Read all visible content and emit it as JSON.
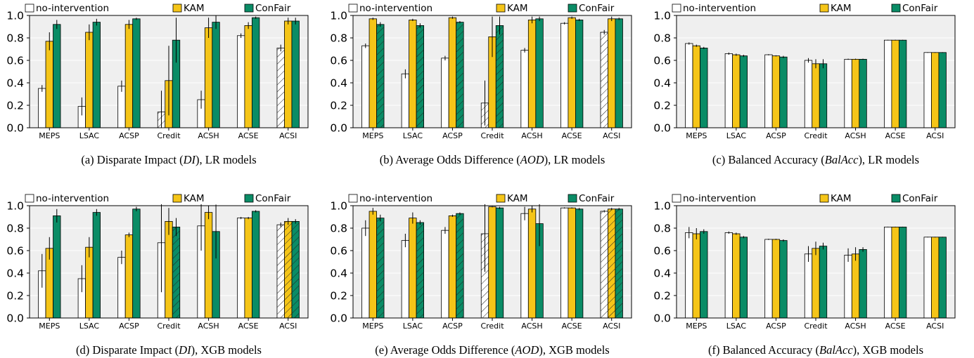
{
  "legend": {
    "labels": [
      "no-intervention",
      "KAM",
      "ConFair"
    ],
    "colors": [
      "#ffffff",
      "#f5c518",
      "#0a8c66"
    ]
  },
  "style": {
    "panel_background": "#efefef",
    "grid_color": "#ffffff",
    "axis_color": "#000000"
  },
  "chart_data": [
    {
      "type": "bar",
      "caption": [
        "(a) Disparate Impact (",
        "DI",
        "), LR models"
      ],
      "categories": [
        "MEPS",
        "LSAC",
        "ACSP",
        "Credit",
        "ACSH",
        "ACSE",
        "ACSI"
      ],
      "ylim": [
        0,
        1.0
      ],
      "yticks": [
        "0.0",
        "0.2",
        "0.4",
        "0.6",
        "0.8",
        "1.0"
      ],
      "series": [
        {
          "name": "no-intervention",
          "values": [
            0.35,
            0.19,
            0.37,
            0.14,
            0.25,
            0.82,
            0.71
          ],
          "errors": [
            0.03,
            0.08,
            0.05,
            0.19,
            0.08,
            0.02,
            0.03
          ],
          "hatched": [
            false,
            false,
            false,
            true,
            false,
            false,
            true
          ]
        },
        {
          "name": "KAM",
          "values": [
            0.77,
            0.85,
            0.92,
            0.42,
            0.89,
            0.91,
            0.95
          ],
          "errors": [
            0.08,
            0.07,
            0.04,
            0.31,
            0.09,
            0.03,
            0.03
          ],
          "hatched": [
            false,
            false,
            false,
            false,
            false,
            false,
            false
          ]
        },
        {
          "name": "ConFair",
          "values": [
            0.92,
            0.94,
            0.97,
            0.78,
            0.94,
            0.98,
            0.95
          ],
          "errors": [
            0.04,
            0.03,
            0.01,
            0.2,
            0.06,
            0.01,
            0.03
          ],
          "hatched": [
            false,
            false,
            false,
            false,
            false,
            false,
            false
          ]
        }
      ]
    },
    {
      "type": "bar",
      "caption": [
        "(b) Average Odds Difference (",
        "AOD",
        "), LR models"
      ],
      "categories": [
        "MEPS",
        "LSAC",
        "ACSP",
        "Credit",
        "ACSH",
        "ACSE",
        "ACSI"
      ],
      "ylim": [
        0,
        1.0
      ],
      "yticks": [
        "0.0",
        "0.2",
        "0.4",
        "0.6",
        "0.8",
        "1.0"
      ],
      "series": [
        {
          "name": "no-intervention",
          "values": [
            0.73,
            0.48,
            0.62,
            0.22,
            0.69,
            0.93,
            0.85
          ],
          "errors": [
            0.02,
            0.04,
            0.02,
            0.2,
            0.02,
            0.01,
            0.02
          ],
          "hatched": [
            false,
            false,
            false,
            true,
            false,
            false,
            true
          ]
        },
        {
          "name": "KAM",
          "values": [
            0.97,
            0.96,
            0.98,
            0.81,
            0.96,
            0.98,
            0.97
          ],
          "errors": [
            0.01,
            0.01,
            0.01,
            0.18,
            0.03,
            0.01,
            0.02
          ],
          "hatched": [
            false,
            false,
            false,
            false,
            false,
            false,
            false
          ]
        },
        {
          "name": "ConFair",
          "values": [
            0.92,
            0.91,
            0.94,
            0.91,
            0.97,
            0.96,
            0.97
          ],
          "errors": [
            0.02,
            0.02,
            0.01,
            0.08,
            0.02,
            0.01,
            0.01
          ],
          "hatched": [
            true,
            true,
            true,
            true,
            false,
            false,
            false
          ]
        }
      ]
    },
    {
      "type": "bar",
      "caption": [
        "(c) Balanced Accuracy (",
        "BalAcc",
        "), LR models"
      ],
      "categories": [
        "MEPS",
        "LSAC",
        "ACSP",
        "Credit",
        "ACSH",
        "ACSE",
        "ACSI"
      ],
      "ylim": [
        0,
        1.0
      ],
      "yticks": [
        "0.0",
        "0.2",
        "0.4",
        "0.6",
        "0.8",
        "1.0"
      ],
      "series": [
        {
          "name": "no-intervention",
          "values": [
            0.75,
            0.66,
            0.65,
            0.6,
            0.61,
            0.78,
            0.67
          ],
          "errors": [
            0.01,
            0.01,
            0.005,
            0.02,
            0.005,
            0.003,
            0.003
          ],
          "hatched": [
            false,
            false,
            false,
            false,
            false,
            false,
            false
          ]
        },
        {
          "name": "KAM",
          "values": [
            0.73,
            0.65,
            0.64,
            0.57,
            0.61,
            0.78,
            0.67
          ],
          "errors": [
            0.01,
            0.01,
            0.005,
            0.04,
            0.005,
            0.003,
            0.003
          ],
          "hatched": [
            false,
            false,
            false,
            false,
            false,
            false,
            false
          ]
        },
        {
          "name": "ConFair",
          "values": [
            0.71,
            0.64,
            0.63,
            0.57,
            0.61,
            0.78,
            0.67
          ],
          "errors": [
            0.01,
            0.01,
            0.01,
            0.04,
            0.005,
            0.003,
            0.003
          ],
          "hatched": [
            false,
            false,
            false,
            false,
            false,
            false,
            false
          ]
        }
      ]
    },
    {
      "type": "bar",
      "caption": [
        "(d) Disparate Impact (",
        "DI",
        "), XGB models"
      ],
      "categories": [
        "MEPS",
        "LSAC",
        "ACSP",
        "Credit",
        "ACSH",
        "ACSE",
        "ACSI"
      ],
      "ylim": [
        0,
        1.0
      ],
      "yticks": [
        "0.0",
        "0.2",
        "0.4",
        "0.6",
        "0.8",
        "1.0"
      ],
      "series": [
        {
          "name": "no-intervention",
          "values": [
            0.42,
            0.35,
            0.54,
            0.67,
            0.82,
            0.89,
            0.83
          ],
          "errors": [
            0.15,
            0.12,
            0.06,
            0.44,
            0.22,
            0.01,
            0.02
          ],
          "hatched": [
            false,
            false,
            false,
            false,
            false,
            false,
            true
          ]
        },
        {
          "name": "KAM",
          "values": [
            0.62,
            0.63,
            0.74,
            0.86,
            0.94,
            0.89,
            0.86
          ],
          "errors": [
            0.1,
            0.09,
            0.02,
            0.12,
            0.06,
            0.01,
            0.03
          ],
          "hatched": [
            false,
            false,
            false,
            false,
            false,
            false,
            true
          ]
        },
        {
          "name": "ConFair",
          "values": [
            0.91,
            0.94,
            0.97,
            0.81,
            0.77,
            0.95,
            0.86
          ],
          "errors": [
            0.06,
            0.03,
            0.02,
            0.08,
            0.24,
            0.01,
            0.02
          ],
          "hatched": [
            false,
            false,
            false,
            true,
            false,
            false,
            true
          ]
        }
      ]
    },
    {
      "type": "bar",
      "caption": [
        "(e) Average Odds Difference (",
        "AOD",
        "), XGB models"
      ],
      "categories": [
        "MEPS",
        "LSAC",
        "ACSP",
        "Credit",
        "ACSH",
        "ACSE",
        "ACSI"
      ],
      "ylim": [
        0,
        1.0
      ],
      "yticks": [
        "0.0",
        "0.2",
        "0.4",
        "0.6",
        "0.8",
        "1.0"
      ],
      "series": [
        {
          "name": "no-intervention",
          "values": [
            0.8,
            0.69,
            0.78,
            0.75,
            0.93,
            0.98,
            0.95
          ],
          "errors": [
            0.07,
            0.06,
            0.03,
            0.34,
            0.06,
            0.005,
            0.01
          ],
          "hatched": [
            false,
            false,
            false,
            true,
            false,
            false,
            true
          ]
        },
        {
          "name": "KAM",
          "values": [
            0.95,
            0.89,
            0.91,
            0.99,
            0.97,
            0.98,
            0.97
          ],
          "errors": [
            0.03,
            0.05,
            0.01,
            0.005,
            0.03,
            0.005,
            0.01
          ],
          "hatched": [
            false,
            false,
            false,
            false,
            false,
            false,
            true
          ]
        },
        {
          "name": "ConFair",
          "values": [
            0.89,
            0.85,
            0.93,
            0.98,
            0.84,
            0.97,
            0.97
          ],
          "errors": [
            0.03,
            0.02,
            0.01,
            0.01,
            0.2,
            0.01,
            0.01
          ],
          "hatched": [
            true,
            true,
            true,
            false,
            false,
            false,
            true
          ]
        }
      ]
    },
    {
      "type": "bar",
      "caption": [
        "(f) Balanced Accuracy (",
        "BalAcc",
        "), XGB models"
      ],
      "categories": [
        "MEPS",
        "LSAC",
        "ACSP",
        "Credit",
        "ACSH",
        "ACSE",
        "ACSI"
      ],
      "ylim": [
        0,
        1.0
      ],
      "yticks": [
        "0.0",
        "0.2",
        "0.4",
        "0.6",
        "0.8",
        "1.0"
      ],
      "series": [
        {
          "name": "no-intervention",
          "values": [
            0.76,
            0.76,
            0.7,
            0.57,
            0.56,
            0.81,
            0.72
          ],
          "errors": [
            0.05,
            0.01,
            0.005,
            0.07,
            0.06,
            0.003,
            0.003
          ],
          "hatched": [
            false,
            false,
            false,
            false,
            false,
            false,
            false
          ]
        },
        {
          "name": "KAM",
          "values": [
            0.75,
            0.75,
            0.7,
            0.62,
            0.57,
            0.81,
            0.72
          ],
          "errors": [
            0.05,
            0.01,
            0.005,
            0.06,
            0.06,
            0.003,
            0.003
          ],
          "hatched": [
            false,
            false,
            false,
            false,
            false,
            false,
            false
          ]
        },
        {
          "name": "ConFair",
          "values": [
            0.77,
            0.72,
            0.69,
            0.64,
            0.61,
            0.81,
            0.72
          ],
          "errors": [
            0.02,
            0.01,
            0.01,
            0.03,
            0.02,
            0.003,
            0.003
          ],
          "hatched": [
            false,
            false,
            false,
            false,
            false,
            false,
            false
          ]
        }
      ]
    }
  ]
}
